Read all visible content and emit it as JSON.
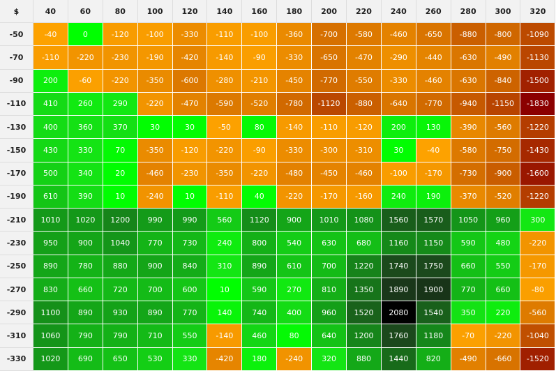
{
  "table": {
    "corner": "$",
    "columns": [
      40,
      60,
      80,
      100,
      120,
      140,
      160,
      180,
      200,
      220,
      240,
      260,
      280,
      300,
      320
    ],
    "rows": [
      {
        "label": -50,
        "values": [
          -40,
          0,
          -120,
          -100,
          -330,
          -110,
          -100,
          -360,
          -700,
          -580,
          -460,
          -650,
          -880,
          -800,
          -1090
        ]
      },
      {
        "label": -70,
        "values": [
          -110,
          -220,
          -230,
          -190,
          -420,
          -140,
          -90,
          -330,
          -650,
          -470,
          -290,
          -440,
          -630,
          -490,
          -1130
        ]
      },
      {
        "label": -90,
        "values": [
          200,
          -60,
          -220,
          -350,
          -600,
          -280,
          -210,
          -450,
          -770,
          -550,
          -330,
          -460,
          -630,
          -840,
          -1500
        ]
      },
      {
        "label": -110,
        "values": [
          410,
          260,
          290,
          -220,
          -470,
          -590,
          -520,
          -780,
          -1120,
          -880,
          -640,
          -770,
          -940,
          -1150,
          -1830
        ]
      },
      {
        "label": -130,
        "values": [
          400,
          360,
          370,
          30,
          30,
          -50,
          80,
          -140,
          -110,
          -120,
          200,
          130,
          -390,
          -560,
          -1220
        ]
      },
      {
        "label": -150,
        "values": [
          430,
          330,
          70,
          -350,
          -120,
          -220,
          -90,
          -330,
          -300,
          -310,
          30,
          -40,
          -580,
          -750,
          -1430
        ]
      },
      {
        "label": -170,
        "values": [
          500,
          340,
          20,
          -460,
          -230,
          -350,
          -220,
          -480,
          -450,
          -460,
          -100,
          -170,
          -730,
          -900,
          -1600
        ]
      },
      {
        "label": -190,
        "values": [
          610,
          390,
          10,
          -240,
          10,
          -110,
          40,
          -220,
          -170,
          -160,
          240,
          190,
          -370,
          -520,
          -1220
        ]
      },
      {
        "label": -210,
        "values": [
          1010,
          1020,
          1200,
          990,
          990,
          560,
          1120,
          900,
          1010,
          1080,
          1560,
          1570,
          1050,
          960,
          300
        ]
      },
      {
        "label": -230,
        "values": [
          950,
          900,
          1040,
          770,
          730,
          240,
          800,
          540,
          630,
          680,
          1160,
          1150,
          590,
          480,
          -220
        ]
      },
      {
        "label": -250,
        "values": [
          890,
          780,
          880,
          900,
          840,
          310,
          890,
          610,
          700,
          1220,
          1740,
          1750,
          660,
          550,
          -170
        ]
      },
      {
        "label": -270,
        "values": [
          830,
          660,
          720,
          700,
          600,
          10,
          590,
          270,
          810,
          1350,
          1890,
          1900,
          770,
          660,
          -80
        ]
      },
      {
        "label": -290,
        "values": [
          1100,
          890,
          930,
          890,
          770,
          140,
          740,
          400,
          960,
          1520,
          2080,
          1540,
          350,
          220,
          -560
        ]
      },
      {
        "label": -310,
        "values": [
          1060,
          790,
          790,
          710,
          550,
          -140,
          460,
          80,
          640,
          1200,
          1760,
          1180,
          -70,
          -220,
          -1040
        ]
      },
      {
        "label": -330,
        "values": [
          1020,
          690,
          650,
          530,
          330,
          -420,
          180,
          -240,
          320,
          880,
          1440,
          820,
          -490,
          -660,
          -1520
        ]
      }
    ]
  }
}
